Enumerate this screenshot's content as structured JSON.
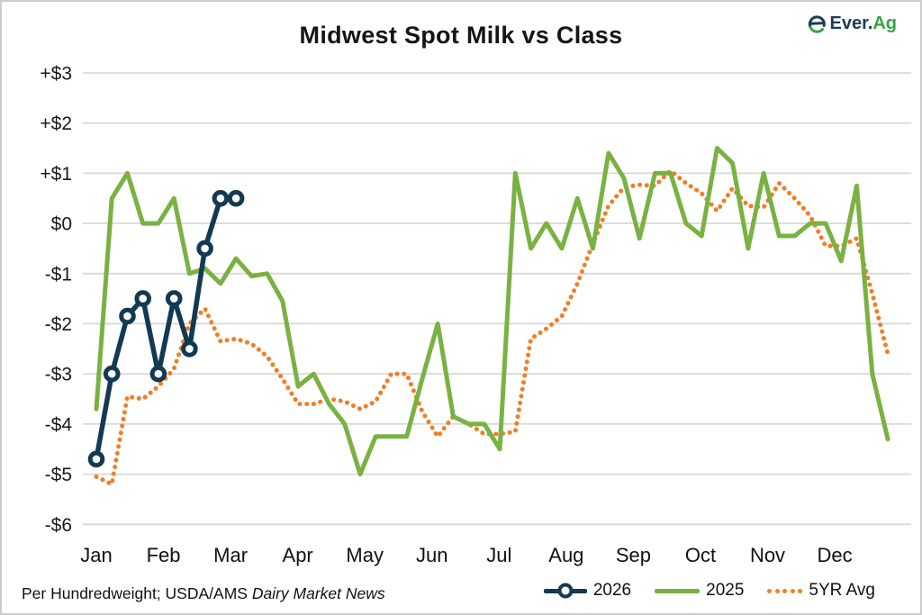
{
  "header": {
    "title": "Midwest Spot Milk vs Class",
    "logo": {
      "text_primary": "Ever.",
      "text_secondary": "Ag"
    }
  },
  "footer": {
    "text": "Per Hundredweight; USDA/AMS ",
    "text_italic": "Dairy Market News"
  },
  "chart_data": {
    "type": "line",
    "title": "Midwest Spot Milk vs Class",
    "x_axis": {
      "categories": [
        "Jan",
        "Feb",
        "Mar",
        "Apr",
        "May",
        "Jun",
        "Jul",
        "Aug",
        "Sep",
        "Oct",
        "Nov",
        "Dec"
      ],
      "points_per_series": 52
    },
    "y_axis": {
      "grid": true,
      "min": -6,
      "max": 3,
      "ticks": [
        {
          "label": "+$3",
          "value": 3
        },
        {
          "label": "+$2",
          "value": 2
        },
        {
          "label": "+$1",
          "value": 1
        },
        {
          "label": "$0",
          "value": 0
        },
        {
          "label": "-$1",
          "value": -1
        },
        {
          "label": "-$2",
          "value": -2
        },
        {
          "label": "-$3",
          "value": -3
        },
        {
          "label": "-$4",
          "value": -4
        },
        {
          "label": "-$5",
          "value": -5
        },
        {
          "label": "-$6",
          "value": -6
        }
      ]
    },
    "legend_position": "bottom-right",
    "series": [
      {
        "name": "2026",
        "color": "#123a52",
        "style": "solid_with_circle_markers",
        "values": [
          -4.7,
          -3.0,
          -1.85,
          -1.5,
          -3.0,
          -1.5,
          -2.5,
          -0.5,
          0.5,
          0.5
        ]
      },
      {
        "name": "2025",
        "color": "#79b242",
        "style": "solid",
        "values": [
          -3.7,
          0.5,
          1.0,
          0.0,
          0.0,
          0.5,
          -1.0,
          -0.9,
          -1.2,
          -0.7,
          -1.05,
          -1.0,
          -1.55,
          -3.25,
          -3.0,
          -3.6,
          -4.0,
          -5.0,
          -4.25,
          -4.25,
          -4.25,
          -3.1,
          -2.0,
          -3.85,
          -4.0,
          -4.0,
          -4.5,
          1.0,
          -0.5,
          0.0,
          -0.5,
          0.5,
          -0.5,
          1.4,
          0.9,
          -0.3,
          1.0,
          1.0,
          0.0,
          -0.25,
          1.5,
          1.2,
          -0.5,
          1.0,
          -0.25,
          -0.25,
          0.0,
          0.0,
          -0.75,
          0.75,
          -3.0,
          -4.3
        ]
      },
      {
        "name": "5YR Avg",
        "color": "#f07e26",
        "style": "dotted",
        "values": [
          -5.05,
          -5.2,
          -3.45,
          -3.5,
          -3.25,
          -2.9,
          -2.0,
          -1.7,
          -2.35,
          -2.3,
          -2.4,
          -2.65,
          -3.1,
          -3.6,
          -3.6,
          -3.5,
          -3.55,
          -3.7,
          -3.55,
          -3.0,
          -3.0,
          -3.75,
          -4.25,
          -3.85,
          -4.0,
          -4.2,
          -4.2,
          -4.15,
          -2.3,
          -2.1,
          -1.85,
          -1.2,
          -0.4,
          0.35,
          0.72,
          0.77,
          0.75,
          1.05,
          0.8,
          0.6,
          0.25,
          0.7,
          0.35,
          0.32,
          0.8,
          0.5,
          0.15,
          -0.45,
          -0.45,
          -0.3,
          -1.4,
          -2.6
        ]
      }
    ]
  }
}
